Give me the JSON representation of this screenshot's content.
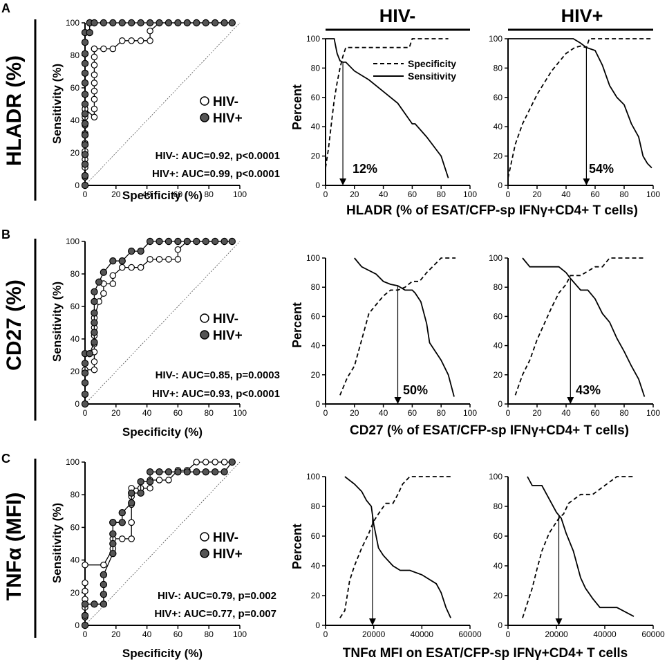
{
  "figure": {
    "column_headers": [
      "HIV-",
      "HIV+"
    ],
    "panels": [
      {
        "letter": "A",
        "row_label": "HLADR (%)",
        "roc": {
          "xlabel": "Specificity (%)",
          "ylabel": "Sensitivity (%)",
          "xticks": [
            "0",
            "20",
            "40",
            "60",
            "80",
            "100"
          ],
          "yticks": [
            "0",
            "20",
            "40",
            "60",
            "80",
            "100"
          ],
          "legend": [
            "HIV-",
            "HIV+"
          ],
          "auc_lines": [
            "HIV-: AUC=0.92, p<0.0001",
            "HIV+: AUC=0.99, p<0.0001"
          ]
        },
        "threshold_xlabel": "HLADR (% of ESAT/CFP-sp IFNγ+CD4+ T cells)",
        "threshold_ylabel": "Percent",
        "threshold_xticks": [
          "0",
          "20",
          "40",
          "60",
          "80",
          "100"
        ],
        "threshold_yticks": [
          "0",
          "20",
          "40",
          "60",
          "80",
          "100"
        ],
        "legend": [
          "Specificity",
          "Sensitivity"
        ],
        "cutoff_labels": [
          "12%",
          "54%"
        ]
      },
      {
        "letter": "B",
        "row_label": "CD27 (%)",
        "roc": {
          "xlabel": "Specificity (%)",
          "ylabel": "Sensitivity (%)",
          "xticks": [
            "0",
            "20",
            "40",
            "60",
            "80",
            "100"
          ],
          "yticks": [
            "0",
            "20",
            "40",
            "60",
            "80",
            "100"
          ],
          "legend": [
            "HIV-",
            "HIV+"
          ],
          "auc_lines": [
            "HIV-: AUC=0.85, p=0.0003",
            "HIV+: AUC=0.93, p<0.0001"
          ]
        },
        "threshold_xlabel": "CD27 (% of ESAT/CFP-sp IFNγ+CD4+ T cells)",
        "threshold_ylabel": "Percent",
        "threshold_xticks": [
          "0",
          "20",
          "40",
          "60",
          "80",
          "100"
        ],
        "threshold_yticks": [
          "0",
          "20",
          "40",
          "60",
          "80",
          "100"
        ],
        "cutoff_labels": [
          "50%",
          "43%"
        ]
      },
      {
        "letter": "C",
        "row_label": "TNFα (MFI)",
        "roc": {
          "xlabel": "Specificity (%)",
          "ylabel": "Sensitivity (%)",
          "xticks": [
            "0",
            "20",
            "40",
            "60",
            "80",
            "100"
          ],
          "yticks": [
            "0",
            "20",
            "40",
            "60",
            "80",
            "100"
          ],
          "legend": [
            "HIV-",
            "HIV+"
          ],
          "auc_lines": [
            "HIV-: AUC=0.79, p=0.002",
            "HIV+: AUC=0.77, p=0.007"
          ]
        },
        "threshold_xlabel": "TNFα MFI on ESAT/CFP-sp IFNγ+CD4+ T cells",
        "threshold_ylabel": "Percent",
        "threshold_xticks": [
          "0",
          "20000",
          "40000",
          "60000"
        ],
        "threshold_yticks": [
          "0",
          "20",
          "40",
          "60",
          "80",
          "100"
        ],
        "cutoff_labels": [
          "",
          ""
        ]
      }
    ]
  },
  "chart_data": [
    {
      "id": "A-roc",
      "type": "line",
      "kind": "roc",
      "title": "HLADR (%) ROC",
      "xlabel": "Specificity (%)",
      "ylabel": "Sensitivity (%)",
      "xlim": [
        0,
        100
      ],
      "ylim": [
        0,
        100
      ],
      "series": [
        {
          "name": "HIV-",
          "x": [
            0,
            0,
            0,
            0,
            0,
            0,
            0,
            0,
            0,
            0,
            6,
            6,
            6,
            6,
            6,
            6,
            6,
            6,
            6,
            6,
            12,
            18,
            24,
            30,
            36,
            42,
            42,
            48,
            95
          ],
          "y": [
            0,
            5,
            11,
            16,
            21,
            26,
            32,
            37,
            42,
            47,
            42,
            47,
            53,
            58,
            63,
            68,
            74,
            79,
            84,
            84,
            84,
            84,
            89,
            89,
            89,
            89,
            95,
            100,
            100
          ]
        },
        {
          "name": "HIV+",
          "x": [
            0,
            0,
            0,
            0,
            0,
            0,
            0,
            0,
            0,
            0,
            0,
            0,
            0,
            0,
            0,
            0,
            3,
            3,
            3,
            6,
            12,
            18,
            24,
            30,
            36,
            42,
            48,
            54,
            60,
            66,
            72,
            78,
            84,
            90,
            95
          ],
          "y": [
            0,
            6,
            13,
            19,
            25,
            31,
            38,
            44,
            50,
            56,
            63,
            69,
            75,
            81,
            88,
            94,
            94,
            100,
            100,
            100,
            100,
            100,
            100,
            100,
            100,
            100,
            100,
            100,
            100,
            100,
            100,
            100,
            100,
            100,
            100
          ]
        }
      ]
    },
    {
      "id": "A-hivneg",
      "type": "line",
      "kind": "threshold",
      "title": "HIV-",
      "xlabel": "HLADR (% of ESAT/CFP-sp IFNγ+CD4+ T cells)",
      "ylabel": "Percent",
      "xlim": [
        0,
        100
      ],
      "ylim": [
        0,
        100
      ],
      "cutoff": 12,
      "series": [
        {
          "name": "Specificity",
          "style": "dashed",
          "x": [
            0,
            2,
            4,
            6,
            8,
            10,
            12,
            14,
            58,
            60,
            85
          ],
          "y": [
            12,
            25,
            42,
            58,
            70,
            80,
            88,
            94,
            94,
            100,
            100
          ]
        },
        {
          "name": "Sensitivity",
          "style": "solid",
          "x": [
            0,
            6,
            8,
            10,
            12,
            14,
            20,
            30,
            40,
            50,
            60,
            62,
            70,
            80,
            85
          ],
          "y": [
            100,
            100,
            90,
            85,
            84,
            84,
            78,
            72,
            64,
            56,
            42,
            42,
            33,
            20,
            5
          ]
        }
      ]
    },
    {
      "id": "A-hivpos",
      "type": "line",
      "kind": "threshold",
      "xlabel": "HLADR (% of ESAT/CFP-sp IFNγ+CD4+ T cells)",
      "ylabel": "Percent",
      "xlim": [
        0,
        100
      ],
      "ylim": [
        0,
        100
      ],
      "cutoff": 54,
      "series": [
        {
          "name": "Specificity",
          "style": "dashed",
          "x": [
            0,
            5,
            10,
            20,
            30,
            40,
            46,
            50,
            54,
            56,
            100
          ],
          "y": [
            5,
            28,
            42,
            62,
            78,
            90,
            94,
            95,
            94,
            100,
            100
          ]
        },
        {
          "name": "Sensitivity",
          "style": "solid",
          "x": [
            0,
            45,
            50,
            54,
            60,
            65,
            70,
            75,
            80,
            85,
            90,
            93,
            96,
            99
          ],
          "y": [
            100,
            100,
            97,
            94,
            92,
            82,
            68,
            60,
            55,
            42,
            33,
            20,
            15,
            12
          ]
        }
      ]
    },
    {
      "id": "B-roc",
      "type": "line",
      "kind": "roc",
      "title": "CD27 (%) ROC",
      "xlabel": "Specificity (%)",
      "ylabel": "Sensitivity (%)",
      "xlim": [
        0,
        100
      ],
      "ylim": [
        0,
        100
      ],
      "series": [
        {
          "name": "HIV-",
          "x": [
            0,
            0,
            6,
            6,
            6,
            6,
            6,
            6,
            6,
            9,
            12,
            12,
            18,
            18,
            24,
            30,
            36,
            42,
            48,
            54,
            60,
            60,
            66,
            95
          ],
          "y": [
            0,
            21,
            21,
            26,
            32,
            37,
            42,
            47,
            53,
            63,
            68,
            74,
            74,
            79,
            84,
            84,
            84,
            89,
            89,
            89,
            89,
            95,
            100,
            100
          ]
        },
        {
          "name": "HIV+",
          "x": [
            0,
            0,
            0,
            0,
            0,
            0,
            3,
            6,
            6,
            6,
            6,
            6,
            6,
            9,
            12,
            18,
            24,
            30,
            36,
            42,
            48,
            54,
            60,
            66,
            72,
            78,
            84,
            90,
            95
          ],
          "y": [
            0,
            6,
            13,
            19,
            25,
            31,
            31,
            38,
            44,
            50,
            56,
            63,
            69,
            75,
            81,
            88,
            88,
            94,
            94,
            100,
            100,
            100,
            100,
            100,
            100,
            100,
            100,
            100,
            100
          ]
        }
      ]
    },
    {
      "id": "B-hivneg",
      "type": "line",
      "kind": "threshold",
      "title": "HIV-",
      "xlabel": "CD27 (% of ESAT/CFP-sp IFNγ+CD4+ T cells)",
      "ylabel": "Percent",
      "xlim": [
        0,
        100
      ],
      "ylim": [
        0,
        100
      ],
      "cutoff": 50,
      "series": [
        {
          "name": "Specificity",
          "style": "dashed",
          "x": [
            10,
            15,
            20,
            25,
            30,
            35,
            40,
            45,
            50,
            55,
            60,
            65,
            70,
            75,
            80,
            90
          ],
          "y": [
            6,
            18,
            26,
            44,
            62,
            68,
            74,
            78,
            78,
            80,
            84,
            84,
            90,
            95,
            100,
            100
          ]
        },
        {
          "name": "Sensitivity",
          "style": "solid",
          "x": [
            20,
            25,
            35,
            40,
            45,
            50,
            55,
            60,
            62,
            66,
            70,
            72,
            76,
            80,
            85,
            89
          ],
          "y": [
            100,
            94,
            89,
            84,
            82,
            81,
            78,
            78,
            76,
            70,
            55,
            42,
            36,
            30,
            20,
            5
          ]
        }
      ]
    },
    {
      "id": "B-hivpos",
      "type": "line",
      "kind": "threshold",
      "xlabel": "CD27 (% of ESAT/CFP-sp IFNγ+CD4+ T cells)",
      "ylabel": "Percent",
      "xlim": [
        0,
        100
      ],
      "ylim": [
        0,
        100
      ],
      "cutoff": 43,
      "series": [
        {
          "name": "Specificity",
          "style": "dashed",
          "x": [
            5,
            10,
            15,
            20,
            25,
            30,
            35,
            40,
            43,
            50,
            60,
            65,
            70,
            80,
            95
          ],
          "y": [
            6,
            20,
            30,
            44,
            55,
            66,
            76,
            82,
            88,
            88,
            94,
            94,
            100,
            100,
            100
          ]
        },
        {
          "name": "Sensitivity",
          "style": "solid",
          "x": [
            10,
            15,
            20,
            35,
            40,
            43,
            50,
            55,
            60,
            65,
            70,
            75,
            80,
            85,
            90,
            94
          ],
          "y": [
            100,
            94,
            94,
            94,
            90,
            86,
            78,
            78,
            72,
            62,
            56,
            45,
            36,
            26,
            17,
            5
          ]
        }
      ]
    },
    {
      "id": "C-roc",
      "type": "line",
      "kind": "roc",
      "title": "TNFα (MFI) ROC",
      "xlabel": "Specificity (%)",
      "ylabel": "Sensitivity (%)",
      "xlim": [
        0,
        100
      ],
      "ylim": [
        0,
        100
      ],
      "series": [
        {
          "name": "HIV-",
          "x": [
            0,
            0,
            0,
            0,
            0,
            0,
            0,
            12,
            18,
            18,
            24,
            30,
            30,
            30,
            30,
            30,
            36,
            42,
            42,
            48,
            54,
            60,
            66,
            72,
            78,
            84,
            90,
            95
          ],
          "y": [
            0,
            5,
            11,
            16,
            21,
            26,
            37,
            37,
            47,
            53,
            53,
            53,
            63,
            74,
            79,
            84,
            84,
            84,
            89,
            89,
            89,
            95,
            95,
            100,
            100,
            100,
            100,
            100
          ]
        },
        {
          "name": "HIV+",
          "x": [
            0,
            0,
            0,
            6,
            12,
            12,
            12,
            12,
            18,
            18,
            18,
            18,
            18,
            24,
            24,
            30,
            30,
            36,
            36,
            42,
            42,
            48,
            54,
            60,
            66,
            72,
            78,
            84,
            90,
            95
          ],
          "y": [
            0,
            6,
            13,
            13,
            13,
            19,
            25,
            31,
            44,
            50,
            56,
            63,
            63,
            63,
            69,
            75,
            81,
            81,
            88,
            88,
            94,
            94,
            94,
            94,
            94,
            94,
            94,
            94,
            94,
            100
          ]
        }
      ]
    },
    {
      "id": "C-hivneg",
      "type": "line",
      "kind": "threshold",
      "title": "HIV-",
      "xlabel": "TNFα MFI on ESAT/CFP-sp IFNγ+CD4+ T cells",
      "ylabel": "Percent",
      "xlim": [
        0,
        60000
      ],
      "ylim": [
        0,
        100
      ],
      "cutoff": 19500,
      "series": [
        {
          "name": "Specificity",
          "style": "dashed",
          "x": [
            6000,
            8000,
            10000,
            12000,
            15000,
            18000,
            20000,
            22000,
            25000,
            28000,
            30000,
            32000,
            35000,
            52000
          ],
          "y": [
            5,
            10,
            30,
            40,
            52,
            62,
            70,
            75,
            82,
            82,
            88,
            95,
            100,
            100
          ]
        },
        {
          "name": "Sensitivity",
          "style": "solid",
          "x": [
            8000,
            12000,
            15000,
            17000,
            19000,
            20000,
            22000,
            24000,
            28000,
            31000,
            35000,
            40000,
            46000,
            48000,
            50000,
            52000
          ],
          "y": [
            100,
            95,
            90,
            84,
            80,
            68,
            52,
            47,
            40,
            37,
            37,
            34,
            28,
            22,
            12,
            5
          ]
        }
      ]
    },
    {
      "id": "C-hivpos",
      "type": "line",
      "kind": "threshold",
      "xlabel": "TNFα MFI on ESAT/CFP-sp IFNγ+CD4+ T cells",
      "ylabel": "Percent",
      "xlim": [
        0,
        60000
      ],
      "ylim": [
        0,
        100
      ],
      "cutoff": 21000,
      "series": [
        {
          "name": "Specificity",
          "style": "dashed",
          "x": [
            6000,
            8000,
            10000,
            12000,
            14000,
            17000,
            19000,
            21000,
            23000,
            25000,
            30000,
            35000,
            40000,
            45000,
            52000
          ],
          "y": [
            5,
            15,
            25,
            38,
            50,
            62,
            67,
            72,
            75,
            82,
            88,
            88,
            94,
            100,
            100
          ]
        },
        {
          "name": "Sensitivity",
          "style": "solid",
          "x": [
            8000,
            10000,
            14000,
            16000,
            18000,
            20000,
            22000,
            24000,
            27000,
            30000,
            32000,
            35000,
            38000,
            40000,
            45000,
            52000
          ],
          "y": [
            100,
            94,
            94,
            88,
            82,
            76,
            72,
            62,
            50,
            32,
            25,
            18,
            12,
            12,
            12,
            6
          ]
        }
      ]
    }
  ]
}
